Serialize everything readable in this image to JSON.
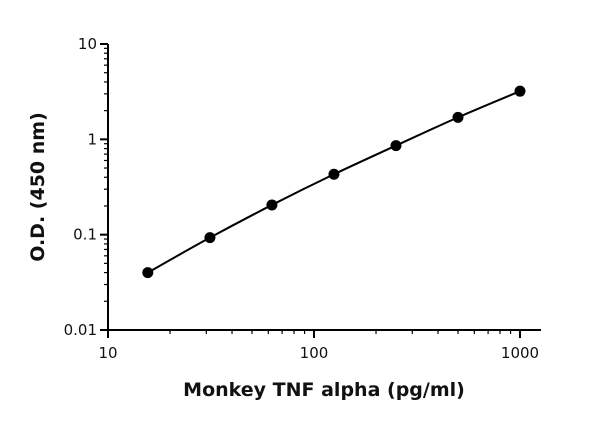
{
  "chart_data": {
    "type": "scatter",
    "title": "",
    "xlabel": "Monkey TNF alpha (pg/ml)",
    "ylabel": "O.D. (450 nm)",
    "x_scale": "log",
    "y_scale": "log",
    "xlim": [
      10,
      1200
    ],
    "ylim": [
      0.01,
      10
    ],
    "x_ticks": [
      {
        "value": 10,
        "label": "10"
      },
      {
        "value": 100,
        "label": "100"
      },
      {
        "value": 1000,
        "label": "1000"
      }
    ],
    "y_ticks": [
      {
        "value": 0.01,
        "label": "0.01"
      },
      {
        "value": 0.1,
        "label": "0.1"
      },
      {
        "value": 1,
        "label": "1"
      },
      {
        "value": 10,
        "label": "10"
      }
    ],
    "grid": false,
    "legend": false,
    "fit_line": true,
    "series": [
      {
        "x": [
          15.6,
          31.25,
          62.5,
          125,
          250,
          500,
          1000
        ],
        "y": [
          0.04,
          0.093,
          0.205,
          0.43,
          0.86,
          1.7,
          3.2
        ]
      }
    ],
    "colors": {
      "marker": "#000000",
      "line": "#000000",
      "axis": "#000000"
    }
  }
}
